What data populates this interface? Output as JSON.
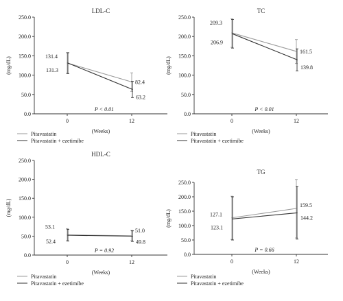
{
  "chart_data": [
    {
      "id": "ldl",
      "type": "line",
      "title": "LDL-C",
      "ylabel": "(mg/dL)",
      "xlabel": "(Weeks)",
      "categories": [
        "0",
        "12"
      ],
      "ylim": [
        0,
        250
      ],
      "yticks": [
        "0.0",
        "50.0",
        "100.0",
        "150.0",
        "200.0",
        "250.0"
      ],
      "p_label": "P < 0.01",
      "series": [
        {
          "name": "Pitavastatin",
          "values": [
            131.4,
            82.4
          ],
          "err_low": [
            105,
            58
          ],
          "err_high": [
            158,
            106
          ],
          "color": "#9a9a9a",
          "labels": [
            "131.4",
            "82.4"
          ]
        },
        {
          "name": "Pitavastatin + ezetimibe",
          "values": [
            131.3,
            63.2
          ],
          "err_low": [
            104,
            42
          ],
          "err_high": [
            158,
            84
          ],
          "color": "#333333",
          "labels": [
            "131.3",
            "63.2"
          ]
        }
      ],
      "legend": [
        "Pitavastatin",
        "Pitavastatin + ezetimibe"
      ]
    },
    {
      "id": "tc",
      "type": "line",
      "title": "TC",
      "ylabel": "(mg/dL)",
      "xlabel": "(Weeks)",
      "categories": [
        "0",
        "12"
      ],
      "ylim": [
        0,
        250
      ],
      "yticks": [
        "0.0",
        "50.0",
        "100.0",
        "150.0",
        "200.0",
        "250.0"
      ],
      "p_label": "P < 0.01",
      "series": [
        {
          "name": "Pitavastatin",
          "values": [
            209.3,
            161.5
          ],
          "err_low": [
            172,
            130
          ],
          "err_high": [
            246,
            192
          ],
          "color": "#9a9a9a",
          "labels": [
            "209.3",
            "161.5"
          ]
        },
        {
          "name": "Pitavastatin + ezetimibe",
          "values": [
            206.9,
            139.8
          ],
          "err_low": [
            170,
            111
          ],
          "err_high": [
            244,
            168
          ],
          "color": "#333333",
          "labels": [
            "206.9",
            "139.8"
          ]
        }
      ],
      "legend": [
        "Pitavastatin",
        "Pitavastatin + ezetimibe"
      ]
    },
    {
      "id": "hdl",
      "type": "line",
      "title": "HDL-C",
      "ylabel": "(mg/dL)",
      "xlabel": "(Weeks)",
      "categories": [
        "0",
        "12"
      ],
      "ylim": [
        0,
        250
      ],
      "yticks": [
        "0.0",
        "50.0",
        "100.0",
        "150.0",
        "200.0",
        "250.0"
      ],
      "p_label": "P = 0.92",
      "series": [
        {
          "name": "Pitavastatin",
          "values": [
            53.1,
            51.0
          ],
          "err_low": [
            38,
            38
          ],
          "err_high": [
            70,
            65
          ],
          "color": "#9a9a9a",
          "labels": [
            "53.1",
            "51.0"
          ]
        },
        {
          "name": "Pitavastatin + ezetimibe",
          "values": [
            52.4,
            49.8
          ],
          "err_low": [
            37,
            36
          ],
          "err_high": [
            68,
            64
          ],
          "color": "#333333",
          "labels": [
            "52.4",
            "49.8"
          ]
        }
      ],
      "legend": [
        "Pitavastatin",
        "Pitavastatin + ezetimibe"
      ]
    },
    {
      "id": "tg",
      "type": "line",
      "title": "TG",
      "ylabel": "(mg/dL)",
      "xlabel": "(Weeks)",
      "categories": [
        "0",
        "12"
      ],
      "ylim": [
        0,
        250
      ],
      "yticks": [
        "0.0",
        "50.0",
        "100.0",
        "150.0",
        "200.0",
        "250.0"
      ],
      "p_label": "P = 0.66",
      "series": [
        {
          "name": "Pitavastatin",
          "values": [
            127.1,
            159.5
          ],
          "err_low": [
            52,
            57
          ],
          "err_high": [
            202,
            260
          ],
          "color": "#9a9a9a",
          "labels": [
            "127.1",
            "159.5"
          ]
        },
        {
          "name": "Pitavastatin + ezetimibe",
          "values": [
            123.1,
            144.2
          ],
          "err_low": [
            50,
            53
          ],
          "err_high": [
            200,
            236
          ],
          "color": "#333333",
          "labels": [
            "123.1",
            "144.2"
          ]
        }
      ],
      "legend": [
        "Pitavastatin",
        "Pitavastatin + ezetimibe"
      ]
    }
  ]
}
